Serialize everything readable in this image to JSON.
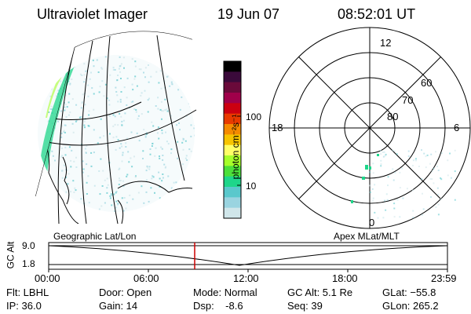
{
  "header": {
    "instrument": "Ultraviolet Imager",
    "date": "19 Jun 07",
    "time": "08:52:01 UT"
  },
  "colorbar": {
    "unit_label": "photon cm⁻²s⁻¹",
    "ticks": [
      "100",
      "10"
    ],
    "colors": [
      "#000000",
      "#3a0a3a",
      "#6a0a3a",
      "#a0004a",
      "#cc0010",
      "#e83a00",
      "#f58a00",
      "#f7c400",
      "#ffff66",
      "#a6ff2a",
      "#4ce03a",
      "#1ed68a",
      "#5ac8cc",
      "#9ad4e0",
      "#d0e6ea"
    ]
  },
  "geo_panel": {
    "label": "Geographic Lat/Lon"
  },
  "polar_panel": {
    "label": "Apex MLat/MLT",
    "mlt_labels": {
      "top": "12",
      "left": "18",
      "right": "6",
      "bottom": "0"
    },
    "lat_labels": [
      "60",
      "70",
      "80"
    ]
  },
  "timeline": {
    "axis_label": "GC Alt",
    "y_ticks": [
      "9.0",
      "1.8"
    ],
    "x_ticks": [
      "00:00",
      "06:00",
      "12:00",
      "18:00",
      "23:59"
    ],
    "marker_color": "#cc0000"
  },
  "info": {
    "flt": "Flt: LBHL",
    "ip": "IP: 36.0",
    "door": "Door: Open",
    "gain": "Gain: 14",
    "mode": "Mode: Normal",
    "dsp": "Dsp:    -8.6",
    "gc_alt": "GC Alt: 5.1 Re",
    "seq": "Seq: 39",
    "glat": "GLat: −55.8",
    "glon": "GLon: 265.2"
  }
}
